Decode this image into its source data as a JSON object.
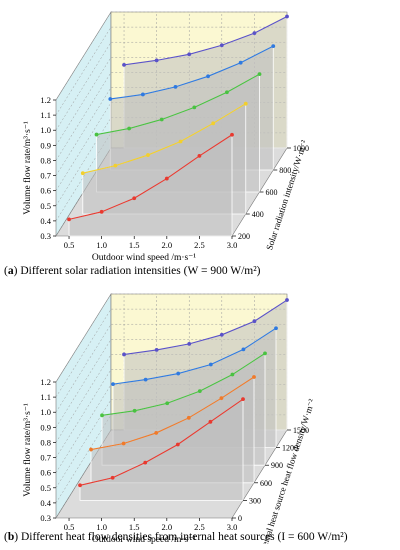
{
  "captions": [
    {
      "label": "a",
      "text": "Different solar radiation intensities (W = 900 W/m²)"
    },
    {
      "label": "b",
      "text": "Different heat flow densities from internal heat sources (I = 600 W/m²)"
    }
  ],
  "colors": {
    "left_wall": "#d6f0f4",
    "back_wall": "#fbf8d2",
    "floor": "#dcdcdc",
    "ribbon": "#c0c0c0",
    "wall_grid": "#9a9a9a",
    "series_colors": [
      "#e8392f",
      "#f2cf2d",
      "#49c241",
      "#2f7ae0",
      "#5a52c8"
    ],
    "series_colors_b": [
      "#e8392f",
      "#f07a2a",
      "#49c241",
      "#2f7ae0",
      "#5a52c8"
    ]
  },
  "chart_data": [
    {
      "type": "line",
      "subtype": "3d-waterfall",
      "xlabel": "Outdoor wind speed /m·s⁻¹",
      "ylabel": "Volume flow rate/m³·s⁻¹",
      "zlabel": "Solar radiation intensity/W·m⁻²",
      "xlim": [
        0.3,
        3.0
      ],
      "ylim": [
        0.3,
        1.2
      ],
      "zlim": [
        200,
        1000
      ],
      "x_ticks": [
        "0.5",
        "1.0",
        "1.5",
        "2.0",
        "2.5",
        "3.0"
      ],
      "y_ticks": [
        "0.3",
        "0.4",
        "0.5",
        "0.6",
        "0.7",
        "0.8",
        "0.9",
        "1.0",
        "1.1",
        "1.2"
      ],
      "z_ticks": [
        "200",
        "400",
        "600",
        "800",
        "1000"
      ],
      "x": [
        0.5,
        1.0,
        1.5,
        2.0,
        2.5,
        3.0
      ],
      "series": [
        {
          "z": 200,
          "values": [
            0.41,
            0.46,
            0.55,
            0.68,
            0.83,
            0.97
          ]
        },
        {
          "z": 400,
          "values": [
            0.57,
            0.62,
            0.69,
            0.78,
            0.9,
            1.03
          ]
        },
        {
          "z": 600,
          "values": [
            0.68,
            0.72,
            0.78,
            0.86,
            0.96,
            1.08
          ]
        },
        {
          "z": 800,
          "values": [
            0.77,
            0.8,
            0.85,
            0.92,
            1.01,
            1.12
          ]
        },
        {
          "z": 1000,
          "values": [
            0.85,
            0.88,
            0.92,
            0.98,
            1.06,
            1.17
          ]
        }
      ]
    },
    {
      "type": "line",
      "subtype": "3d-waterfall",
      "xlabel": "Outdoor wind speed /m·s⁻¹",
      "ylabel": "Volume flow rate/m³·s⁻¹",
      "zlabel": "Internal heat source heat flow density/W·m⁻²",
      "xlim": [
        0.3,
        3.0
      ],
      "ylim": [
        0.3,
        1.2
      ],
      "zlim": [
        0,
        1500
      ],
      "x_ticks": [
        "0.5",
        "1.0",
        "1.5",
        "2.0",
        "2.5",
        "3.0"
      ],
      "y_ticks": [
        "0.3",
        "0.4",
        "0.5",
        "0.6",
        "0.7",
        "0.8",
        "0.9",
        "1.0",
        "1.1",
        "1.2"
      ],
      "z_ticks": [
        "0",
        "300",
        "600",
        "900",
        "1200",
        "1500"
      ],
      "x": [
        0.5,
        1.0,
        1.5,
        2.0,
        2.5,
        3.0
      ],
      "series": [
        {
          "z": 300,
          "values": [
            0.4,
            0.45,
            0.55,
            0.67,
            0.82,
            0.97
          ]
        },
        {
          "z": 600,
          "values": [
            0.52,
            0.56,
            0.63,
            0.73,
            0.86,
            1.0
          ]
        },
        {
          "z": 900,
          "values": [
            0.63,
            0.66,
            0.71,
            0.79,
            0.9,
            1.04
          ]
        },
        {
          "z": 1200,
          "values": [
            0.72,
            0.75,
            0.79,
            0.85,
            0.95,
            1.09
          ]
        },
        {
          "z": 1500,
          "values": [
            0.8,
            0.83,
            0.87,
            0.93,
            1.02,
            1.16
          ]
        }
      ]
    }
  ]
}
